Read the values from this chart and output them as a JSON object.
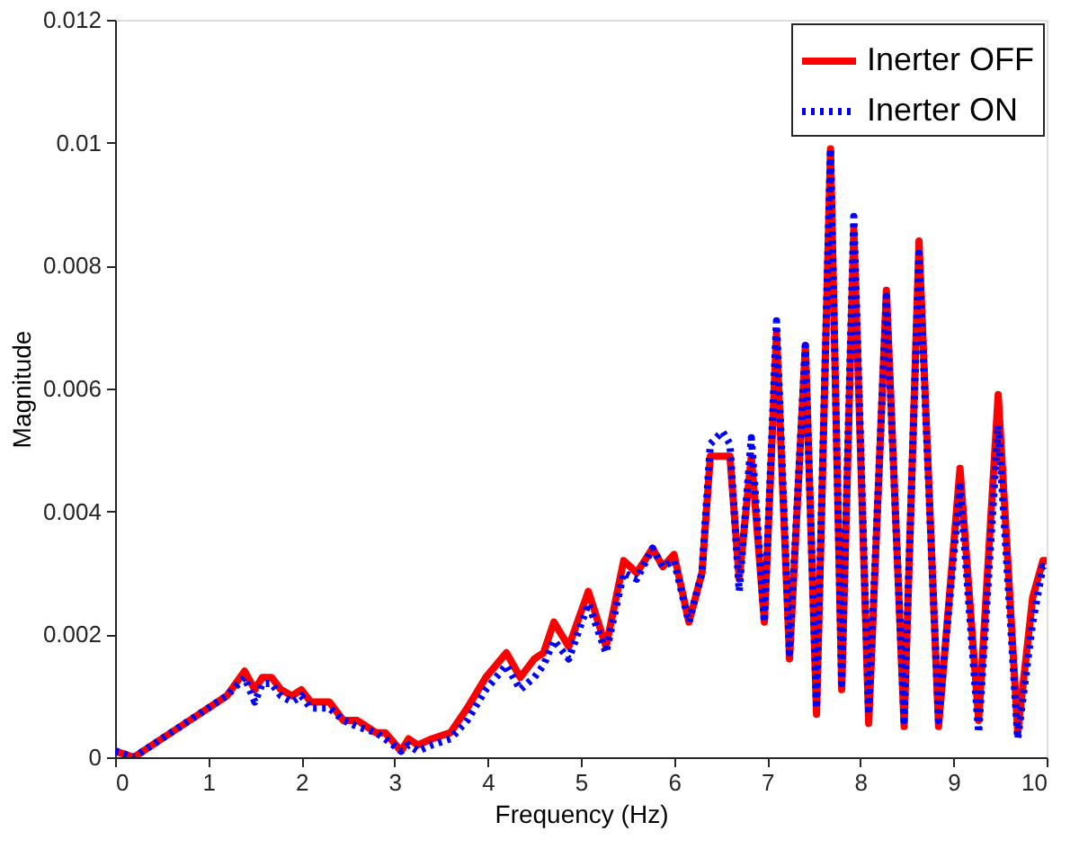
{
  "chart_data": {
    "type": "line",
    "xlabel": "Frequency (Hz)",
    "ylabel": "Magnitude",
    "xlim": [
      0,
      10
    ],
    "ylim": [
      0,
      0.012
    ],
    "xticks": [
      0,
      1,
      2,
      3,
      4,
      5,
      6,
      7,
      8,
      9,
      10
    ],
    "yticks": [
      0,
      0.002,
      0.004,
      0.006,
      0.008,
      0.01,
      0.012
    ],
    "grid": false,
    "legend": "top right",
    "marker": "none",
    "series": [
      {
        "name": "Inerter OFF",
        "color": "#ff0000",
        "line_style": "solid",
        "x": [
          0,
          0.2,
          0.5,
          0.8,
          1.0,
          1.2,
          1.39,
          1.5,
          1.58,
          1.68,
          1.78,
          1.9,
          2.0,
          2.1,
          2.3,
          2.45,
          2.6,
          2.8,
          2.9,
          3.07,
          3.15,
          3.25,
          3.4,
          3.6,
          3.78,
          3.98,
          4.2,
          4.35,
          4.5,
          4.6,
          4.71,
          4.87,
          5.08,
          5.27,
          5.46,
          5.6,
          5.77,
          5.88,
          6.0,
          6.16,
          6.3,
          6.39,
          6.52,
          6.6,
          6.7,
          6.83,
          6.97,
          7.1,
          7.24,
          7.41,
          7.53,
          7.68,
          7.8,
          7.93,
          8.09,
          8.28,
          8.47,
          8.63,
          8.84,
          9.07,
          9.27,
          9.48,
          9.69,
          9.85,
          9.96,
          10
        ],
        "values": [
          0.0001,
          0,
          0.0003,
          0.0006,
          0.0008,
          0.001,
          0.0014,
          0.0011,
          0.0013,
          0.0013,
          0.0011,
          0.001,
          0.0011,
          0.0009,
          0.0009,
          0.0006,
          0.0006,
          0.0004,
          0.0004,
          0.0001,
          0.0003,
          0.0002,
          0.0003,
          0.0004,
          0.0008,
          0.0013,
          0.0017,
          0.0013,
          0.0016,
          0.0017,
          0.0022,
          0.0018,
          0.0027,
          0.0018,
          0.0032,
          0.003,
          0.0034,
          0.0031,
          0.0033,
          0.0022,
          0.003,
          0.0049,
          0.0049,
          0.0049,
          0.0029,
          0.0049,
          0.0022,
          0.0069,
          0.0016,
          0.0067,
          0.0007,
          0.0099,
          0.0011,
          0.0086,
          0.00055,
          0.0076,
          0.0005,
          0.0084,
          0.0005,
          0.0047,
          0.0006,
          0.0059,
          0.0004,
          0.0026,
          0.0032,
          0.0032
        ]
      },
      {
        "name": "Inerter ON",
        "color": "#0000ff",
        "line_style": "dotted",
        "x": [
          0,
          0.2,
          0.5,
          0.8,
          1.0,
          1.2,
          1.39,
          1.5,
          1.58,
          1.68,
          1.78,
          1.9,
          2.0,
          2.1,
          2.3,
          2.45,
          2.6,
          2.8,
          2.9,
          3.07,
          3.15,
          3.25,
          3.4,
          3.6,
          3.78,
          3.98,
          4.2,
          4.35,
          4.5,
          4.6,
          4.71,
          4.87,
          5.08,
          5.27,
          5.46,
          5.6,
          5.77,
          5.88,
          6.0,
          6.16,
          6.3,
          6.39,
          6.52,
          6.6,
          6.7,
          6.83,
          6.97,
          7.1,
          7.24,
          7.41,
          7.53,
          7.68,
          7.8,
          7.93,
          8.09,
          8.28,
          8.47,
          8.63,
          8.84,
          9.07,
          9.27,
          9.48,
          9.69,
          9.85,
          9.96,
          10
        ],
        "values": [
          0.0001,
          0,
          0.0003,
          0.0006,
          0.0008,
          0.001,
          0.0013,
          0.0009,
          0.0012,
          0.0012,
          0.001,
          0.0009,
          0.001,
          0.0008,
          0.0008,
          0.0006,
          0.0005,
          0.0004,
          0.0003,
          0.0001,
          0.0002,
          0.0001,
          0.0002,
          0.0003,
          0.0006,
          0.0011,
          0.0015,
          0.0011,
          0.0013,
          0.0015,
          0.0019,
          0.0016,
          0.0025,
          0.0017,
          0.003,
          0.0029,
          0.0034,
          0.0031,
          0.0032,
          0.0022,
          0.003,
          0.0051,
          0.0053,
          0.0051,
          0.0027,
          0.0052,
          0.0022,
          0.0071,
          0.0017,
          0.0067,
          0.0008,
          0.0099,
          0.0012,
          0.0088,
          0.0007,
          0.0075,
          0.0006,
          0.0082,
          0.0006,
          0.0044,
          0.0004,
          0.0054,
          0.0003,
          0.0022,
          0.0031,
          0.0031
        ]
      }
    ]
  }
}
